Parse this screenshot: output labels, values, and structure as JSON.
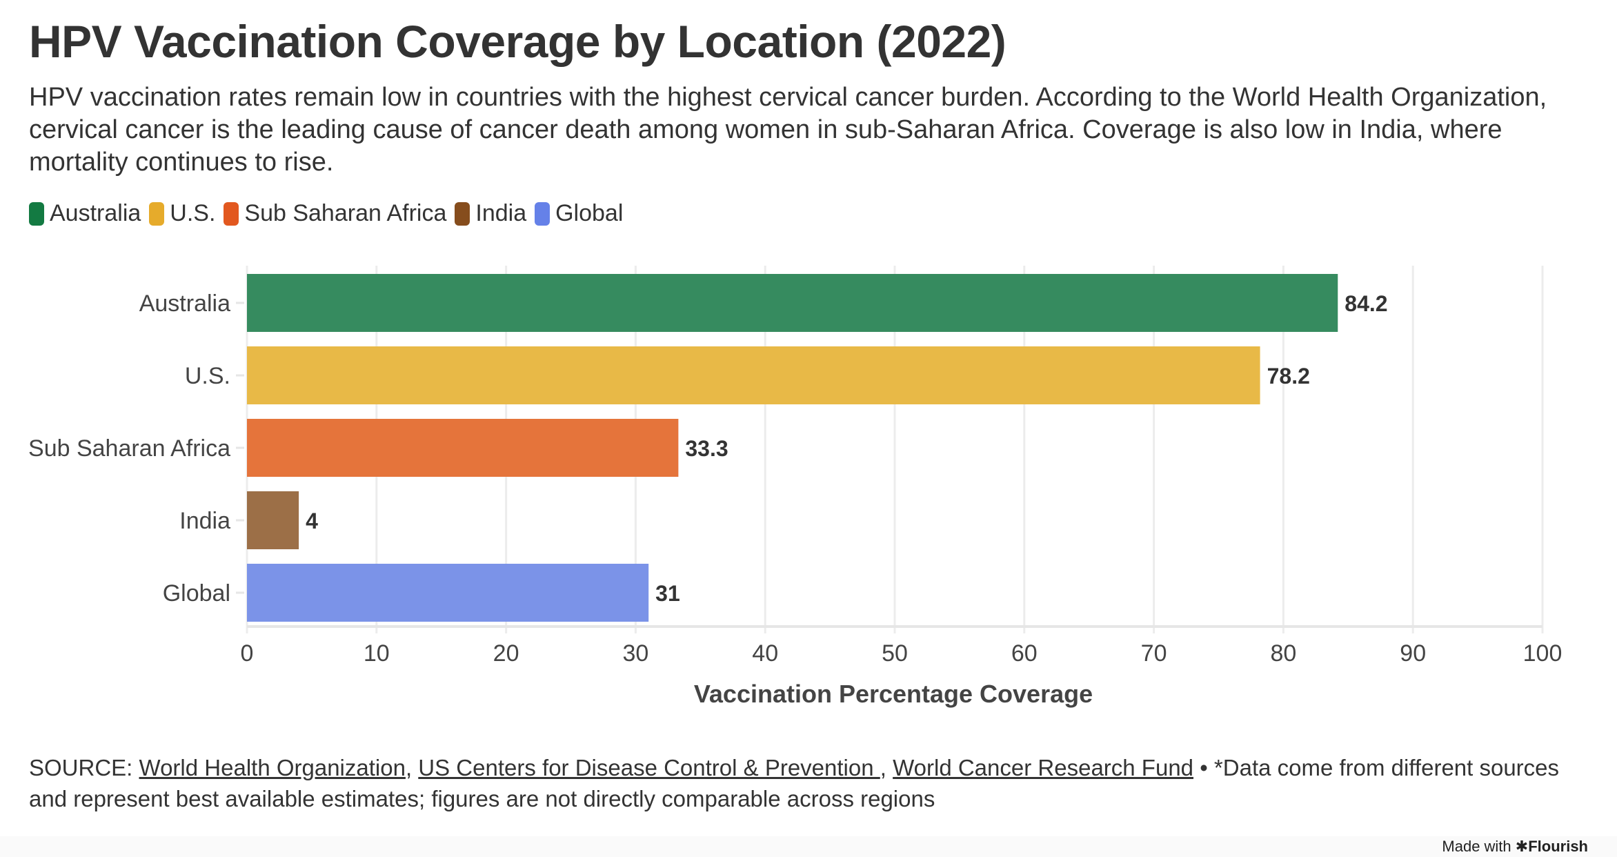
{
  "header": {
    "title": "HPV Vaccination Coverage by Location (2022)",
    "subtitle": "HPV vaccination rates remain low in countries with the highest cervical cancer burden. According to the World Health Organization, cervical cancer is the leading cause of cancer death among women in sub-Saharan Africa. Coverage is also low in India, where mortality continues to rise."
  },
  "legend": [
    {
      "label": "Australia",
      "color": "#137a42"
    },
    {
      "label": "U.S.",
      "color": "#e6ab2b"
    },
    {
      "label": "Sub Saharan Africa",
      "color": "#e2581f"
    },
    {
      "label": "India",
      "color": "#864d1d"
    },
    {
      "label": "Global",
      "color": "#6581e8"
    }
  ],
  "chart_data": {
    "type": "bar",
    "orientation": "horizontal",
    "title": "HPV Vaccination Coverage by Location (2022)",
    "xlabel": "Vaccination Percentage Coverage",
    "ylabel": "",
    "categories": [
      "Australia",
      "U.S.",
      "Sub Saharan Africa",
      "India",
      "Global"
    ],
    "values": [
      84.2,
      78.2,
      33.3,
      4,
      31
    ],
    "data_labels": [
      "84.2",
      "78.2",
      "33.3",
      "4",
      "31"
    ],
    "colors": [
      "#368b5f",
      "#e8b947",
      "#e5743b",
      "#9c6f47",
      "#7b93e8"
    ],
    "xlim": [
      0,
      100
    ],
    "xticks": [
      0,
      10,
      20,
      30,
      40,
      50,
      60,
      70,
      80,
      90,
      100
    ],
    "grid": true,
    "legend_position": "top-left"
  },
  "source": {
    "prefix": "SOURCE: ",
    "links": [
      "World Health Organization",
      "US Centers for Disease Control & Prevention ",
      "World Cancer Research Fund"
    ],
    "separator_1": ", ",
    "separator_2": ", ",
    "note": " • *Data come from different sources and represent best available estimates; figures are not directly comparable across regions"
  },
  "footer": {
    "made_with": "Made with ",
    "brand_icon": "asterisk-icon",
    "brand": "Flourish"
  }
}
